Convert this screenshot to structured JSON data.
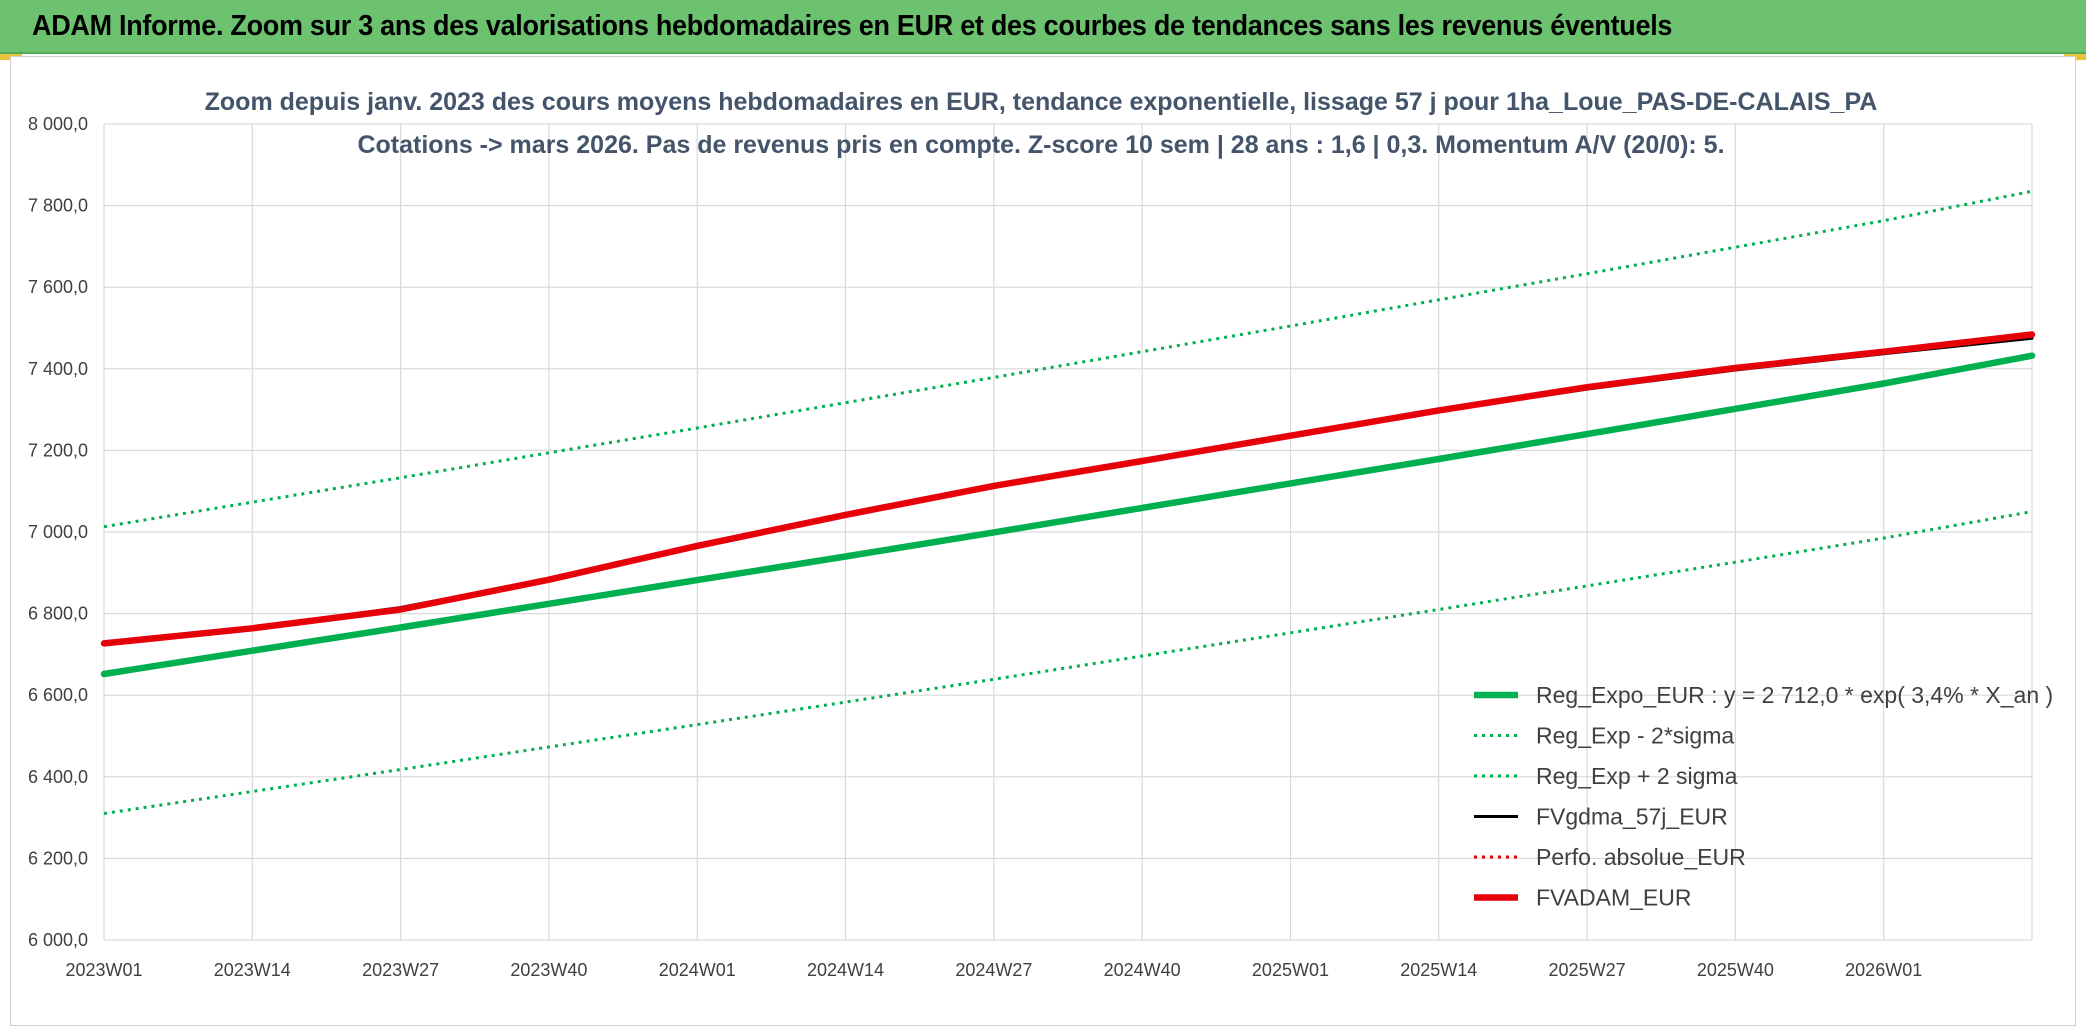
{
  "banner": {
    "title": "ADAM Informe. Zoom sur 3 ans des valorisations hebdomadaires en EUR et des courbes de tendances sans les revenus éventuels"
  },
  "colors": {
    "banner_bg": "#6cc26f",
    "reg_expo": "#00b050",
    "fvgdma": "#000000",
    "perfo": "#e00000",
    "fvadam": "#e8000b",
    "grid": "#d9d9d9"
  },
  "chart_data": {
    "type": "line",
    "title": "Zoom depuis janv. 2023 des cours moyens hebdomadaires en EUR, tendance exponentielle, lissage 57 j pour 1ha_Loue_PAS-DE-CALAIS_PA",
    "subtitle": "Cotations -> mars 2026. Pas de revenus pris en compte. Z-score 10 sem | 28 ans : 1,6 | 0,3. Momentum A/V (20/0): 5.",
    "xlabel": "",
    "ylabel": "",
    "ylim": [
      6000,
      8000
    ],
    "yticks": [
      "6 000,0",
      "6 200,0",
      "6 400,0",
      "6 600,0",
      "6 800,0",
      "7 000,0",
      "7 200,0",
      "7 400,0",
      "7 600,0",
      "7 800,0",
      "8 000,0"
    ],
    "x_tick_labels": [
      "2023W01",
      "2023W14",
      "2023W27",
      "2023W40",
      "2024W01",
      "2024W14",
      "2024W27",
      "2024W40",
      "2025W01",
      "2025W14",
      "2025W27",
      "2025W40",
      "2026W01"
    ],
    "x_week_index_range": [
      0,
      169
    ],
    "grid": true,
    "legend_position": "bottom-right",
    "series": [
      {
        "name": "Reg_Expo_EUR : y = 2 712,0 * exp( 3,4% *  X_an )",
        "style": "solid-thick",
        "color": "#00b050",
        "x": [
          0,
          13,
          26,
          39,
          52,
          65,
          78,
          91,
          104,
          117,
          130,
          143,
          156,
          169
        ],
        "values": [
          6652,
          6709,
          6766,
          6824,
          6882,
          6940,
          6999,
          7059,
          7119,
          7179,
          7240,
          7302,
          7364,
          7432
        ]
      },
      {
        "name": "Reg_Exp - 2*sigma",
        "style": "dotted",
        "color": "#00b050",
        "x": [
          0,
          13,
          26,
          39,
          52,
          65,
          78,
          91,
          104,
          117,
          130,
          143,
          156,
          169
        ],
        "values": [
          6310,
          6364,
          6418,
          6473,
          6528,
          6583,
          6639,
          6696,
          6753,
          6810,
          6868,
          6926,
          6985,
          7050
        ]
      },
      {
        "name": "Reg_Exp + 2 sigma",
        "style": "dotted",
        "color": "#00b050",
        "x": [
          0,
          13,
          26,
          39,
          52,
          65,
          78,
          91,
          104,
          117,
          130,
          143,
          156,
          169
        ],
        "values": [
          7013,
          7073,
          7133,
          7194,
          7255,
          7317,
          7379,
          7442,
          7505,
          7569,
          7633,
          7698,
          7763,
          7835
        ]
      },
      {
        "name": "FVgdma_57j_EUR",
        "style": "solid",
        "color": "#000000",
        "x": [
          0,
          13,
          26,
          39,
          52,
          65,
          78,
          91,
          104,
          117,
          130,
          143,
          156,
          169
        ],
        "values": [
          6727,
          6765,
          6815,
          6885,
          6966,
          7040,
          7110,
          7172,
          7234,
          7296,
          7350,
          7397,
          7437,
          7475
        ]
      },
      {
        "name": "Perfo. absolue_EUR",
        "style": "dotted",
        "color": "#e00000",
        "x": [
          0,
          13,
          26,
          39,
          52,
          65,
          78,
          91,
          104,
          117,
          130,
          143,
          156,
          169
        ],
        "values": [
          6727,
          6764,
          6810,
          6883,
          6966,
          7042,
          7113,
          7174,
          7236,
          7298,
          7355,
          7402,
          7442,
          7484
        ]
      },
      {
        "name": "FVADAM_EUR",
        "style": "solid-thick",
        "color": "#e8000b",
        "x": [
          0,
          13,
          26,
          39,
          52,
          65,
          78,
          91,
          104,
          117,
          130,
          143,
          156,
          169
        ],
        "values": [
          6727,
          6764,
          6810,
          6883,
          6966,
          7042,
          7113,
          7174,
          7236,
          7298,
          7355,
          7402,
          7442,
          7484
        ]
      }
    ]
  }
}
